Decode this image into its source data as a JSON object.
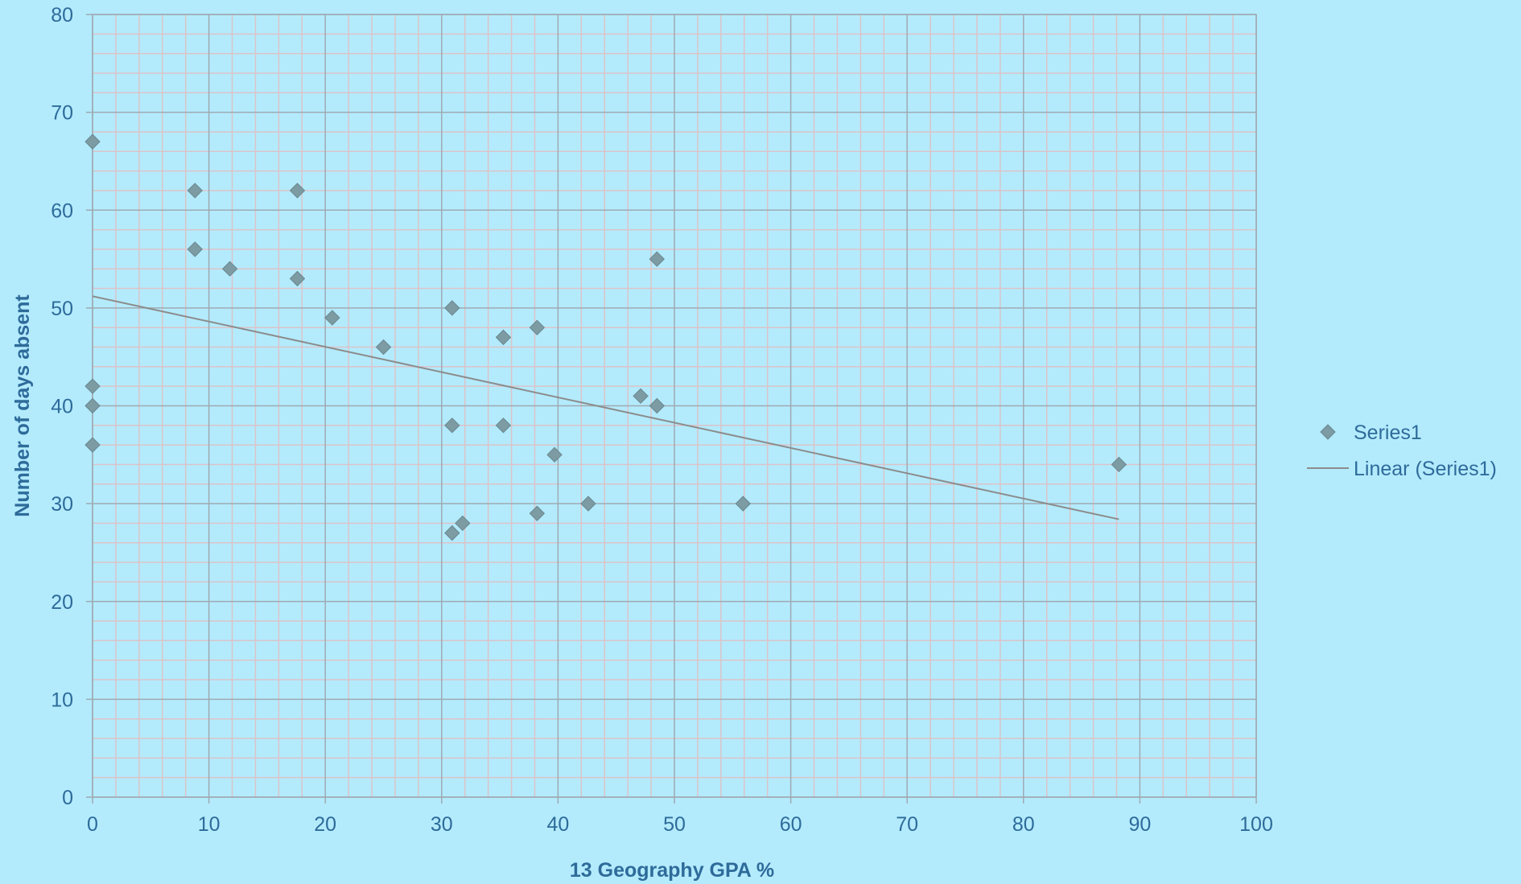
{
  "chart_data": {
    "type": "scatter",
    "title": "",
    "xlabel": "13 Geography GPA %",
    "ylabel": "Number of days absent",
    "xlim": [
      0,
      100
    ],
    "ylim": [
      0,
      80
    ],
    "x_ticks": [
      0,
      10,
      20,
      30,
      40,
      50,
      60,
      70,
      80,
      90,
      100
    ],
    "y_ticks": [
      0,
      10,
      20,
      30,
      40,
      50,
      60,
      70,
      80
    ],
    "x_tick_labels": [
      "0",
      "10",
      "20",
      "30",
      "40",
      "50",
      "60",
      "70",
      "80",
      "90",
      "100"
    ],
    "y_tick_labels": [
      "0",
      "10",
      "20",
      "30",
      "40",
      "50",
      "60",
      "70",
      "80"
    ],
    "grid": true,
    "legend_position": "right",
    "series": [
      {
        "name": "Series1",
        "marker": "diamond",
        "color": "#7d9ba3",
        "points": [
          {
            "x": 0,
            "y": 67
          },
          {
            "x": 0,
            "y": 42
          },
          {
            "x": 0,
            "y": 40
          },
          {
            "x": 0,
            "y": 36
          },
          {
            "x": 8.8,
            "y": 62
          },
          {
            "x": 8.8,
            "y": 56
          },
          {
            "x": 11.8,
            "y": 54
          },
          {
            "x": 17.6,
            "y": 62
          },
          {
            "x": 17.6,
            "y": 53
          },
          {
            "x": 20.6,
            "y": 49
          },
          {
            "x": 25,
            "y": 46
          },
          {
            "x": 30.9,
            "y": 50
          },
          {
            "x": 30.9,
            "y": 38
          },
          {
            "x": 30.9,
            "y": 27
          },
          {
            "x": 31.8,
            "y": 28
          },
          {
            "x": 35.3,
            "y": 47
          },
          {
            "x": 35.3,
            "y": 38
          },
          {
            "x": 38.2,
            "y": 48
          },
          {
            "x": 38.2,
            "y": 29
          },
          {
            "x": 39.7,
            "y": 35
          },
          {
            "x": 42.6,
            "y": 30
          },
          {
            "x": 47.1,
            "y": 41
          },
          {
            "x": 48.5,
            "y": 55
          },
          {
            "x": 48.5,
            "y": 40
          },
          {
            "x": 55.9,
            "y": 30
          },
          {
            "x": 88.2,
            "y": 34
          }
        ]
      }
    ],
    "trendline": {
      "name": "Linear (Series1)",
      "color": "#8c8c8c",
      "x0": 0,
      "y0": 51.2,
      "x1": 88.2,
      "y1": 28.4
    },
    "colors": {
      "background": "#b3ebfd",
      "major_grid": "#9faab2",
      "minor_grid": "#dcc3c8",
      "text": "#2e6b9a",
      "marker": "#7d9ba3"
    }
  }
}
